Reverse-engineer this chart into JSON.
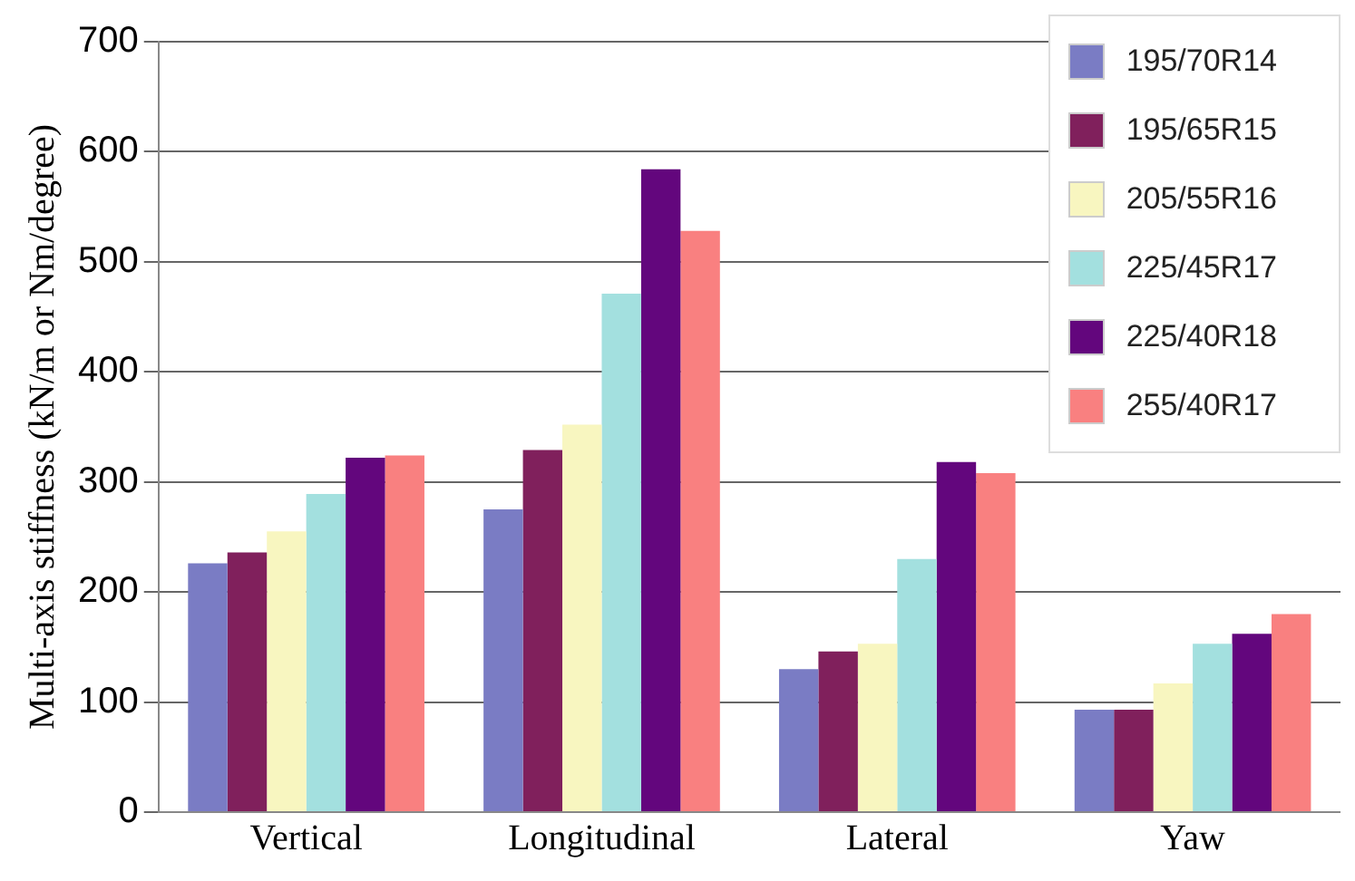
{
  "chart_data": {
    "type": "bar",
    "ylabel": "Multi-axis stiffness (kN/m or Nm/degree)",
    "categories": [
      "Vertical",
      "Longitudinal",
      "Lateral",
      "Yaw"
    ],
    "series": [
      {
        "name": "195/70R14",
        "color": "#7a7cc4",
        "values": [
          226,
          275,
          130,
          93
        ]
      },
      {
        "name": "195/65R15",
        "color": "#80205c",
        "values": [
          236,
          329,
          146,
          93
        ]
      },
      {
        "name": "205/55R16",
        "color": "#f8f6c0",
        "values": [
          255,
          352,
          153,
          117
        ]
      },
      {
        "name": "225/45R17",
        "color": "#a3e0df",
        "values": [
          289,
          471,
          230,
          153
        ]
      },
      {
        "name": "225/40R18",
        "color": "#63067d",
        "values": [
          322,
          584,
          318,
          162
        ]
      },
      {
        "name": "255/40R17",
        "color": "#f98080",
        "values": [
          324,
          528,
          308,
          180
        ]
      }
    ],
    "ylim": [
      0,
      700
    ],
    "yticks": [
      0,
      100,
      200,
      300,
      400,
      500,
      600,
      700
    ],
    "grid": "y",
    "legend": "top right"
  }
}
